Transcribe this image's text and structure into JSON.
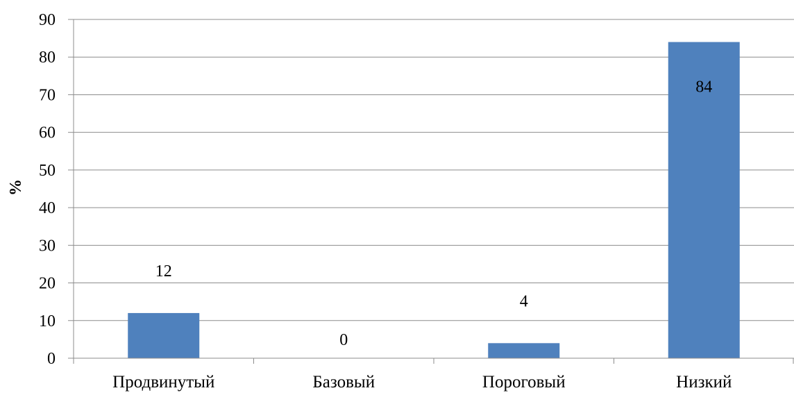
{
  "chart_data": {
    "type": "bar",
    "categories": [
      "Продвинутый",
      "Базовый",
      "Пороговый",
      "Низкий"
    ],
    "values": [
      12,
      0,
      4,
      84
    ],
    "data_labels": [
      "12",
      "0",
      "4",
      "84"
    ],
    "title": "",
    "xlabel": "",
    "ylabel": "%",
    "ylim": [
      0,
      90
    ],
    "yticks": [
      0,
      10,
      20,
      30,
      40,
      50,
      60,
      70,
      80,
      90
    ],
    "grid": true,
    "legend": "none",
    "bar_color": "#4F81BD",
    "grid_color": "#8C8C8C"
  }
}
